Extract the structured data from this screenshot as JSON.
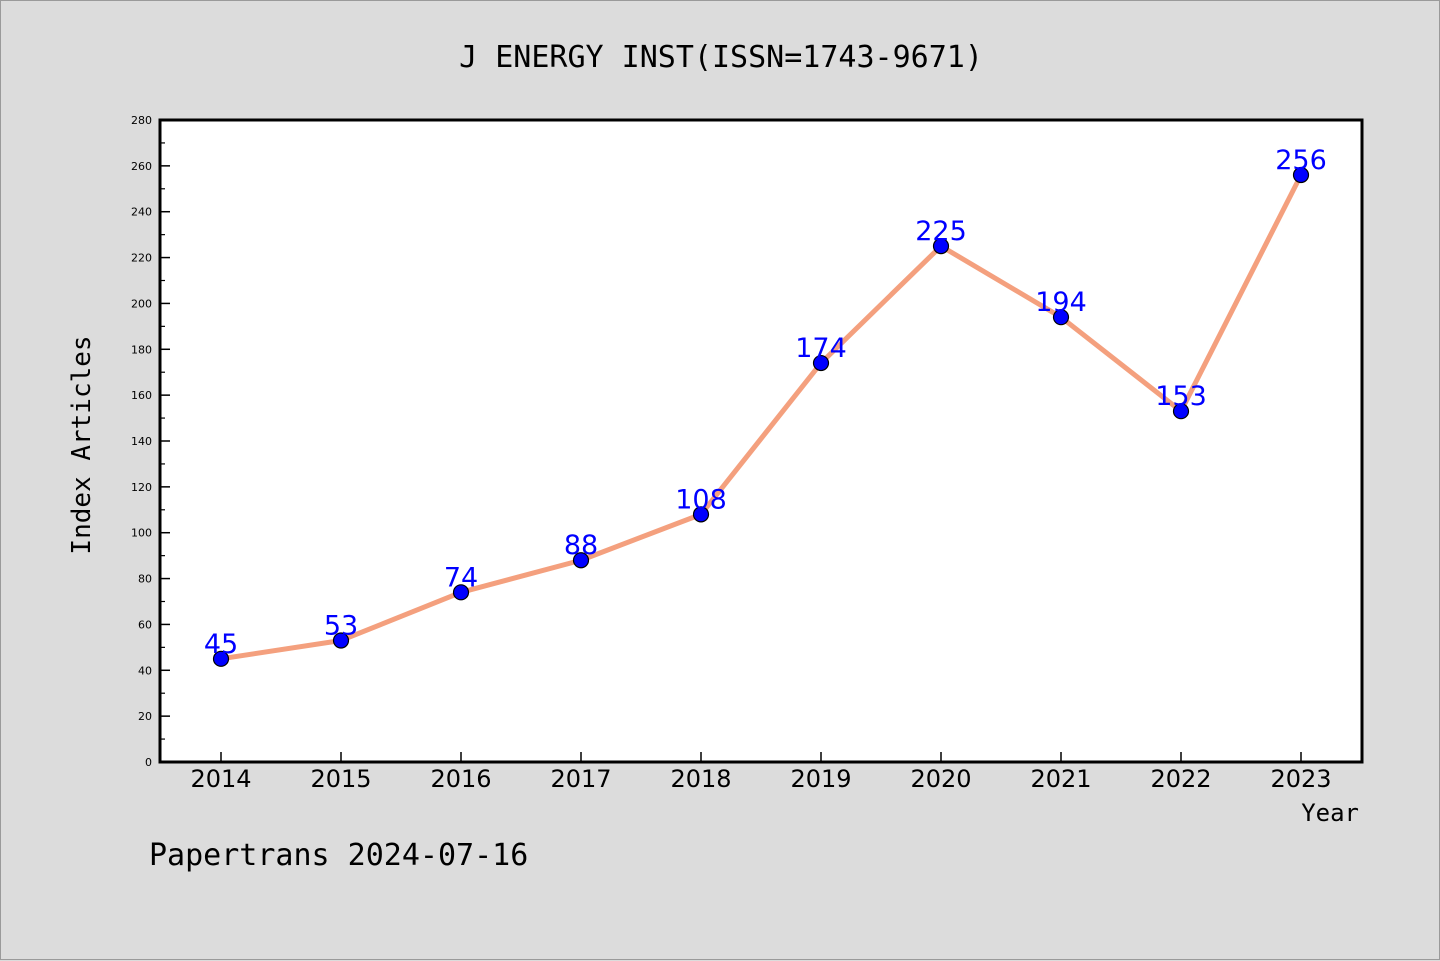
{
  "chart_data": {
    "type": "line",
    "title": "J ENERGY INST(ISSN=1743-9671)",
    "xlabel": "Year",
    "ylabel": "Index Articles",
    "categories": [
      "2014",
      "2015",
      "2016",
      "2017",
      "2018",
      "2019",
      "2020",
      "2021",
      "2022",
      "2023"
    ],
    "series": [
      {
        "values": [
          45,
          53,
          74,
          88,
          108,
          174,
          225,
          194,
          153,
          256
        ]
      }
    ],
    "data_labels": [
      "45",
      "53",
      "74",
      "88",
      "108",
      "174",
      "225",
      "194",
      "153",
      "256"
    ],
    "yticks": [
      0,
      20,
      40,
      60,
      80,
      100,
      120,
      140,
      160,
      180,
      200,
      220,
      240,
      260,
      280
    ],
    "ylim": [
      0,
      280
    ],
    "grid": false,
    "colors": {
      "line": "#f4a07e",
      "marker": "#0000ff",
      "data_label": "#0000ff"
    }
  },
  "footer": {
    "credit": "Papertrans 2024-07-16"
  }
}
